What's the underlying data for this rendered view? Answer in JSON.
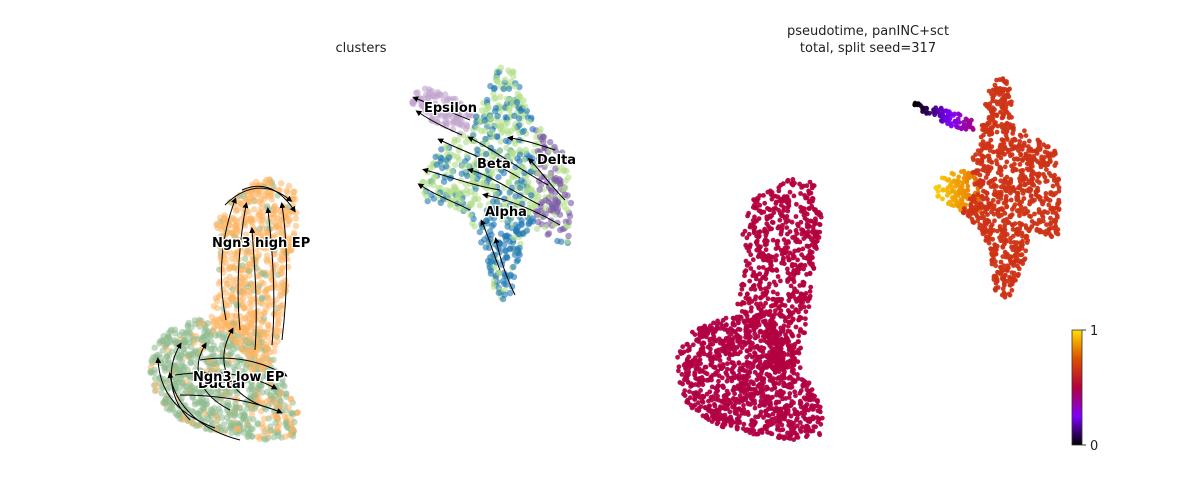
{
  "chart_data": [
    {
      "type": "scatter",
      "title": "clusters",
      "clusters": [
        {
          "name": "Ductal",
          "color": "#8fbc8f"
        },
        {
          "name": "Ngn3 low EP",
          "color": "#8fbc8f"
        },
        {
          "name": "Ngn3 high EP",
          "color": "#fdb462"
        },
        {
          "name": "Epsilon",
          "color": "#c2a5cf"
        },
        {
          "name": "Beta",
          "color": "#b2df8a"
        },
        {
          "name": "Delta",
          "color": "#7b5aa6"
        },
        {
          "name": "Alpha",
          "color": "#1f78b4"
        }
      ],
      "overlay": "velocity stream arrows",
      "axes_visible": false
    },
    {
      "type": "scatter",
      "title_lines": [
        "pseudotime, panINC+sct",
        "total, split seed=317"
      ],
      "color_scale": "gnuplot",
      "colorbar": {
        "min": 0,
        "max": 1,
        "tick_labels": [
          "0",
          "1"
        ]
      },
      "axes_visible": false
    }
  ]
}
